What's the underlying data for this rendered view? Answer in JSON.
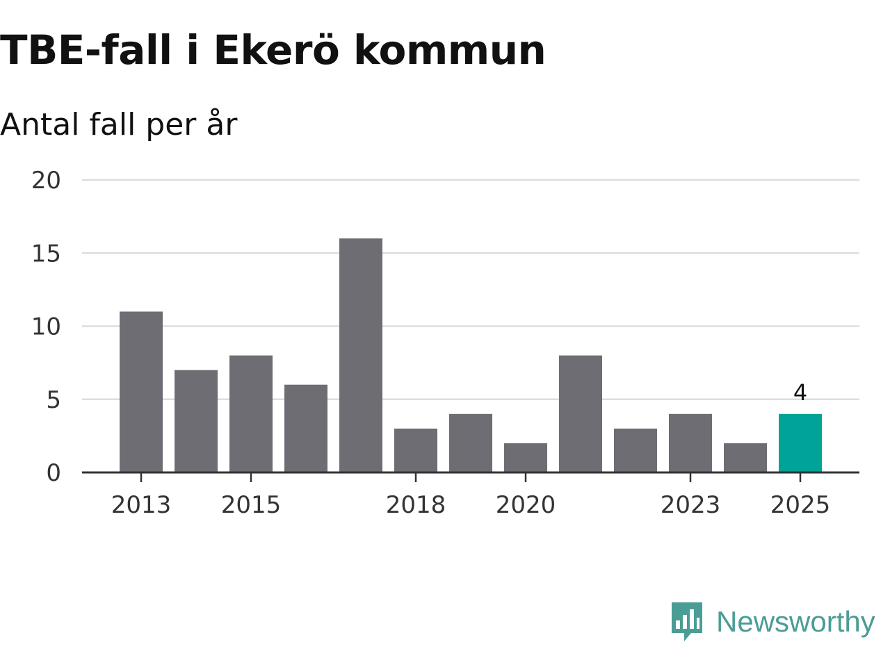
{
  "header": {
    "title": "TBE-fall i Ekerö kommun",
    "subtitle": "Antal fall per år"
  },
  "chart_data": {
    "type": "bar",
    "categories": [
      "2013",
      "2014",
      "2015",
      "2016",
      "2017",
      "2018",
      "2019",
      "2020",
      "2021",
      "2022",
      "2023",
      "2024",
      "2025"
    ],
    "values": [
      11,
      7,
      8,
      6,
      16,
      3,
      4,
      2,
      8,
      3,
      4,
      2,
      4
    ],
    "x_tick_labels": [
      "2013",
      "2015",
      "2018",
      "2020",
      "2023",
      "2025"
    ],
    "y_ticks": [
      "0",
      "5",
      "10",
      "15",
      "20"
    ],
    "ylim": [
      0,
      20
    ],
    "grid": true,
    "highlight_index": 12,
    "highlight_label": "4",
    "colors": {
      "bar": "#6e6d73",
      "highlight": "#00a398",
      "grid": "#dddddd",
      "axis": "#333333"
    }
  },
  "logo": {
    "text": "Newsworthy",
    "icon": "newsworthy-logo-icon",
    "color": "#4a9d95"
  }
}
